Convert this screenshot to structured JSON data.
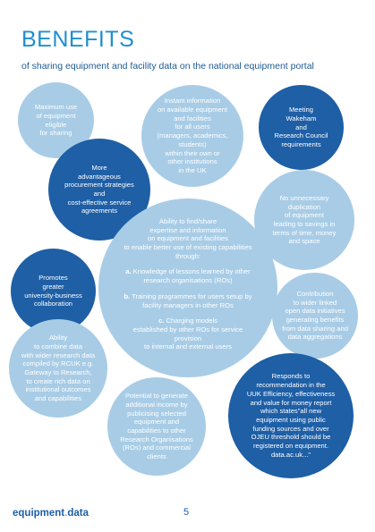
{
  "header": {
    "title": "BENEFITS",
    "subtitle": "of sharing equipment and facility data on the national equipment portal"
  },
  "bubbles": {
    "maximum_use": "Maximum use\nof equipment\neligible\nfor sharing",
    "instant_info": "Instant information\non available equipment\nand facilities\nfor all users\n(managers, academics,\nstudents)\nwithin their own or\nother institutions\nin the UK",
    "wakeham": "Meeting\nWakeham\nand\nResearch Council\nrequirements",
    "procurement": "More\nadvantageous\nprocurement strategies\nand\ncost-effective service\nagreements",
    "no_duplication": "No unnecessary\nduplication\nof equipment\nleading to savings in\nterms of time, money\nand space",
    "central_intro": "Ability to find/share\nexpertise and information\non equipment and facilities\nto enable better use of existing capabilities\nthrough:",
    "central_a_num": "a.",
    "central_a": "Knowledge of lessons learned by other\nresearch organisations (ROs)",
    "central_b_num": "b.",
    "central_b": "Training programmes for users setup by\nfacility managers in other ROs",
    "central_c_num": "c.",
    "central_c": "Charging models\nestablished by other ROs for service\nprovision\nto internal and external users",
    "collaboration": "Promotes\ngreater\nuniversity-business\ncollaboration",
    "open_data": "Contribution\nto wider linked\nopen data initiatives\ngenerating benefits\nfrom data sharing and\ndata aggregations",
    "combine_data": "Ability\nto combine data\nwith wider research data\ncompiled by RCUK e.g.\nGateway to Research,\nto create rich data on\ninstitutional outcomes\nand capabilities",
    "income": "Potential to generate\nadditional income by\npublicising selected\nequipment and\ncapabilities to other\nResearch Organisations\n(ROs) and commercial\nclients",
    "uuk": "Responds to\nrecommendation in the\nUUK Efficiency, effectiveness\nand value for money report\nwhich states\"all new\nequipment using public\nfunding sources and over\nOJEU threshold should be\nregistered on equipment.\ndata.ac.uk...\""
  },
  "footer": {
    "brand_main": "equipment",
    "brand_dot": ".",
    "brand_suffix": "data",
    "page_number": "5"
  }
}
